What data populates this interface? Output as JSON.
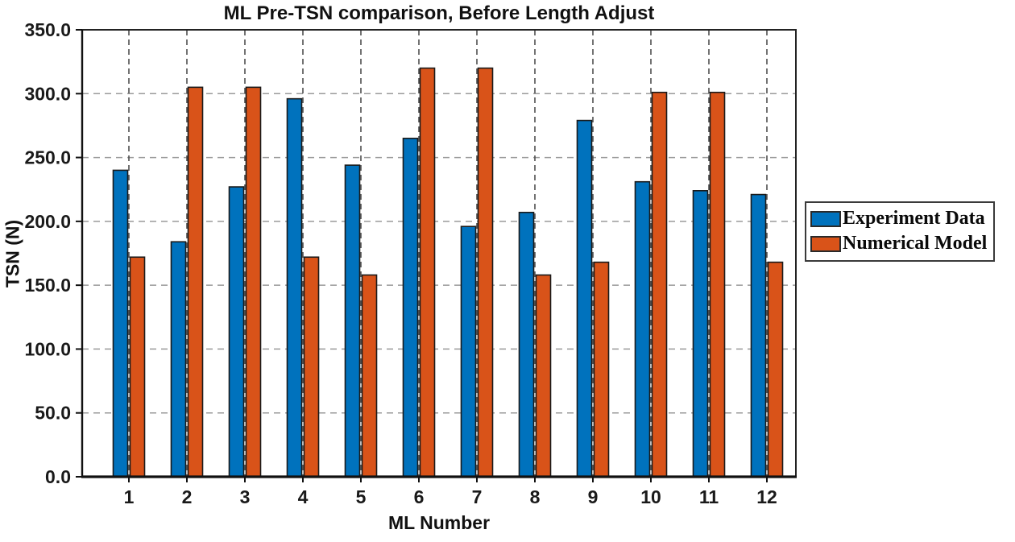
{
  "title": "ML Pre-TSN comparison, Before Length Adjust",
  "xlabel": "ML Number",
  "ylabel": "TSN (N)",
  "legend": {
    "items": [
      {
        "label": "Experiment Data",
        "color": "#0072BD"
      },
      {
        "label": "Numerical Model",
        "color": "#D95319"
      }
    ]
  },
  "chart_data": {
    "type": "bar",
    "title": "ML Pre-TSN comparison, Before Length Adjust",
    "xlabel": "ML Number",
    "ylabel": "TSN (N)",
    "categories": [
      "1",
      "2",
      "3",
      "4",
      "5",
      "6",
      "7",
      "8",
      "9",
      "10",
      "11",
      "12"
    ],
    "series": [
      {
        "name": "Experiment Data",
        "color": "#0072BD",
        "values": [
          240,
          184,
          227,
          296,
          244,
          265,
          196,
          207,
          279,
          231,
          224,
          221
        ]
      },
      {
        "name": "Numerical Model",
        "color": "#D95319",
        "values": [
          172,
          305,
          305,
          172,
          158,
          320,
          320,
          158,
          168,
          301,
          301,
          168
        ]
      }
    ],
    "ylim": [
      0,
      350
    ],
    "y_tick_step": 50,
    "y_tick_labels": [
      "0.0",
      "50.0",
      "100.0",
      "150.0",
      "200.0",
      "250.0",
      "300.0",
      "350.0"
    ],
    "grid": "dashed",
    "grid_h_color": "#9a9a9a",
    "grid_v_color": "#4f4f4f",
    "bar_edge_color": "#1a1a1a",
    "axis_color": "#222222",
    "legend_position": "right-outside"
  }
}
